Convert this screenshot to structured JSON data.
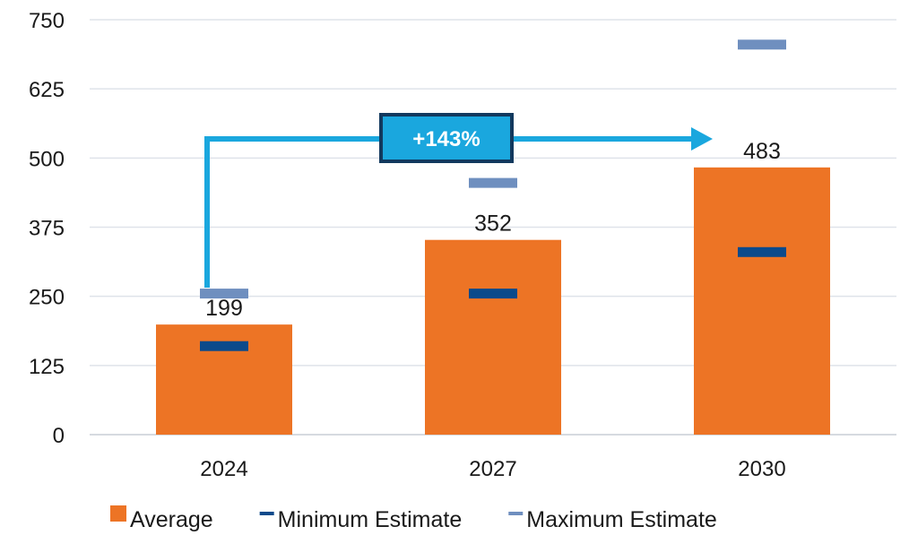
{
  "chart_data": {
    "type": "bar",
    "categories": [
      "2024",
      "2027",
      "2030"
    ],
    "series": [
      {
        "name": "Average",
        "kind": "bar",
        "values": [
          199,
          352,
          483
        ],
        "color": "#ED7425"
      },
      {
        "name": "Minimum Estimate",
        "kind": "marker",
        "values": [
          160,
          255,
          330
        ],
        "color": "#0B4A8B"
      },
      {
        "name": "Maximum Estimate",
        "kind": "marker",
        "values": [
          255,
          455,
          705
        ],
        "color": "#6F8FBF"
      }
    ],
    "data_labels": [
      "199",
      "352",
      "483"
    ],
    "ylim": [
      0,
      750
    ],
    "y_ticks": [
      0,
      125,
      250,
      375,
      500,
      625,
      750
    ],
    "y_tick_labels": [
      "0",
      "125",
      "250",
      "375",
      "500",
      "625",
      "750"
    ],
    "grid": true,
    "legend_position": "bottom",
    "annotation": {
      "text": "+143%",
      "from_category": "2024",
      "to_category": "2030",
      "color": "#1AA7DE"
    }
  }
}
